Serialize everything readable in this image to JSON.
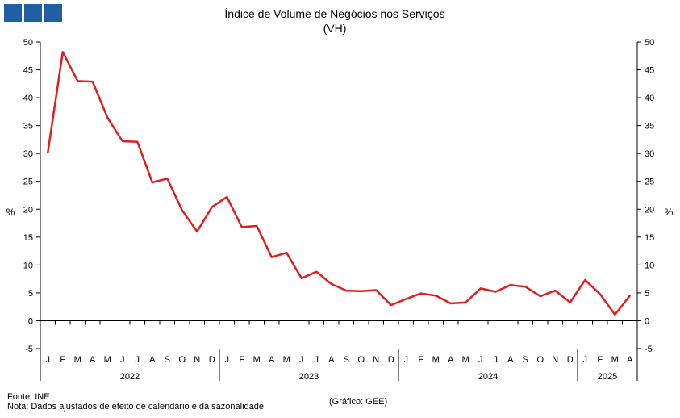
{
  "logo": {
    "colors": [
      "#1f5fa3",
      "#1f5fa3",
      "#1f5fa3"
    ]
  },
  "chart_data": {
    "type": "line",
    "title": "Índice de Volume de Negócios nos Serviços",
    "subtitle": "(VH)",
    "ylabel_left": "%",
    "ylabel_right": "%",
    "ylim": [
      -5,
      50
    ],
    "yticks": [
      "-5",
      "0",
      "5",
      "10",
      "15",
      "20",
      "25",
      "30",
      "35",
      "40",
      "45",
      "50"
    ],
    "grid": false,
    "months": [
      "J",
      "F",
      "M",
      "A",
      "M",
      "J",
      "J",
      "A",
      "S",
      "O",
      "N",
      "D",
      "J",
      "F",
      "M",
      "A",
      "M",
      "J",
      "J",
      "A",
      "S",
      "O",
      "N",
      "D",
      "J",
      "F",
      "M",
      "A",
      "M",
      "J",
      "J",
      "A",
      "S",
      "O",
      "N",
      "D",
      "J",
      "F",
      "M",
      "A"
    ],
    "years": [
      {
        "label": "2022",
        "start": 0,
        "end": 12
      },
      {
        "label": "2023",
        "start": 12,
        "end": 24
      },
      {
        "label": "2024",
        "start": 24,
        "end": 36
      },
      {
        "label": "2025",
        "start": 36,
        "end": 40
      }
    ],
    "series": [
      {
        "color": "#e01e1e",
        "values": [
          30.2,
          48.2,
          43.0,
          42.9,
          36.4,
          32.2,
          32.1,
          24.8,
          25.5,
          19.8,
          16.0,
          20.4,
          22.2,
          16.8,
          17.0,
          11.4,
          12.2,
          7.6,
          8.8,
          6.6,
          5.4,
          5.3,
          5.5,
          2.8,
          3.9,
          4.9,
          4.5,
          3.1,
          3.3,
          5.8,
          5.2,
          6.4,
          6.1,
          4.4,
          5.4,
          3.3,
          7.3,
          4.8,
          1.1,
          4.5
        ]
      }
    ]
  },
  "footer": {
    "source": "Fonte: INE",
    "note": "Nota: Dados ajustados de efeito de calendário e da sazonalidade.",
    "credit": "(Gráfico: GEE)"
  }
}
